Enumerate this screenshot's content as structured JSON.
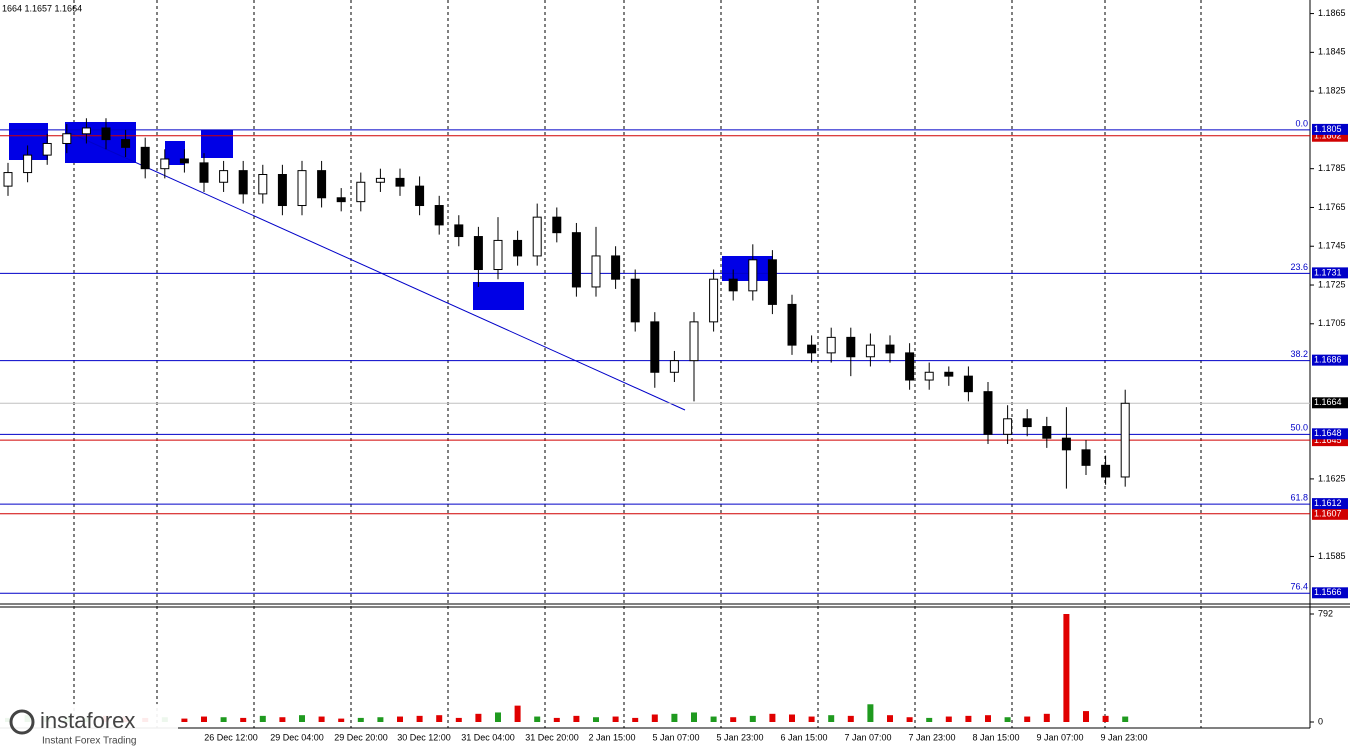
{
  "chart_data": {
    "type": "candlestick",
    "header": "1664 1.1657 1.1664",
    "ylim": [
      1.1561,
      1.1872
    ],
    "yticks": [
      1.1865,
      1.1845,
      1.1825,
      1.1785,
      1.1765,
      1.1745,
      1.1725,
      1.1705,
      1.1625,
      1.1585
    ],
    "x_labels": [
      "26 Dec 12:00",
      "29 Dec 04:00",
      "29 Dec 20:00",
      "30 Dec 12:00",
      "31 Dec 04:00",
      "31 Dec 20:00",
      "2 Jan 15:00",
      "5 Jan 07:00",
      "5 Jan 23:00",
      "6 Jan 15:00",
      "7 Jan 07:00",
      "7 Jan 23:00",
      "8 Jan 15:00",
      "9 Jan 07:00",
      "9 Jan 23:00"
    ],
    "open": [
      1.1776,
      1.1783,
      1.1792,
      1.1798,
      1.1803,
      1.1806,
      1.18,
      1.1796,
      1.1785,
      1.179,
      1.1788,
      1.1778,
      1.1784,
      1.1772,
      1.1782,
      1.1766,
      1.1784,
      1.177,
      1.1768,
      1.1778,
      1.178,
      1.1776,
      1.1766,
      1.1756,
      1.175,
      1.1733,
      1.1748,
      1.174,
      1.176,
      1.1752,
      1.1724,
      1.174,
      1.1728,
      1.1706,
      1.168,
      1.1686,
      1.1706,
      1.1728,
      1.1722,
      1.1738,
      1.1715,
      1.1694,
      1.169,
      1.1698,
      1.1688,
      1.1694,
      1.169,
      1.1676,
      1.168,
      1.1678,
      1.167,
      1.1648,
      1.1656,
      1.1652,
      1.1646,
      1.164,
      1.1632,
      1.1626
    ],
    "high": [
      1.1788,
      1.1797,
      1.1803,
      1.1808,
      1.1811,
      1.1811,
      1.1805,
      1.1801,
      1.1795,
      1.1795,
      1.1793,
      1.1789,
      1.1789,
      1.1787,
      1.1787,
      1.1789,
      1.1789,
      1.1775,
      1.1783,
      1.1785,
      1.1785,
      1.1781,
      1.1771,
      1.1761,
      1.1755,
      1.176,
      1.1753,
      1.1767,
      1.1765,
      1.1757,
      1.1755,
      1.1745,
      1.1733,
      1.1711,
      1.1691,
      1.1711,
      1.1733,
      1.1733,
      1.1746,
      1.1743,
      1.172,
      1.1699,
      1.1703,
      1.1703,
      1.17,
      1.1699,
      1.1695,
      1.1685,
      1.1683,
      1.1683,
      1.1675,
      1.1663,
      1.1661,
      1.1657,
      1.1662,
      1.1645,
      1.1637,
      1.1671
    ],
    "low": [
      1.1771,
      1.1778,
      1.1787,
      1.1793,
      1.1798,
      1.1795,
      1.1791,
      1.178,
      1.178,
      1.1783,
      1.1773,
      1.1773,
      1.1767,
      1.1767,
      1.1761,
      1.1761,
      1.1765,
      1.1763,
      1.1763,
      1.1773,
      1.1771,
      1.1761,
      1.1751,
      1.1745,
      1.1724,
      1.1728,
      1.1735,
      1.1735,
      1.1747,
      1.1719,
      1.1719,
      1.1723,
      1.1701,
      1.1672,
      1.1675,
      1.1665,
      1.1701,
      1.1717,
      1.1717,
      1.171,
      1.1689,
      1.1685,
      1.1685,
      1.1678,
      1.1683,
      1.1685,
      1.1671,
      1.1671,
      1.1673,
      1.1665,
      1.1643,
      1.1643,
      1.1647,
      1.1641,
      1.162,
      1.1627,
      1.1622,
      1.1621
    ],
    "close": [
      1.1783,
      1.1792,
      1.1798,
      1.1803,
      1.1806,
      1.18,
      1.1796,
      1.1785,
      1.179,
      1.1788,
      1.1778,
      1.1784,
      1.1772,
      1.1782,
      1.1766,
      1.1784,
      1.177,
      1.1768,
      1.1778,
      1.178,
      1.1776,
      1.1766,
      1.1756,
      1.175,
      1.1733,
      1.1748,
      1.174,
      1.176,
      1.1752,
      1.1724,
      1.174,
      1.1728,
      1.1706,
      1.168,
      1.1686,
      1.1706,
      1.1728,
      1.1722,
      1.1738,
      1.1715,
      1.1694,
      1.169,
      1.1698,
      1.1688,
      1.1694,
      1.169,
      1.1676,
      1.168,
      1.1678,
      1.167,
      1.1648,
      1.1656,
      1.1652,
      1.1646,
      1.164,
      1.1632,
      1.1626,
      1.1664
    ],
    "candle_color": "#000000",
    "fib_levels": [
      {
        "label": "0.0",
        "value": 1.1805
      },
      {
        "label": "23.6",
        "value": 1.1731
      },
      {
        "label": "38.2",
        "value": 1.1686
      },
      {
        "label": "50.0",
        "value": 1.1648
      },
      {
        "label": "61.8",
        "value": 1.1612
      },
      {
        "label": "76.4",
        "value": 1.1566
      }
    ],
    "fib_color": "#0000c8",
    "red_levels": [
      1.1802,
      1.1645,
      1.1607
    ],
    "red_color": "#d00000",
    "current_price": 1.1664,
    "volume": {
      "values": [
        30,
        50,
        40,
        35,
        30,
        45,
        40,
        30,
        35,
        25,
        40,
        35,
        30,
        45,
        35,
        50,
        40,
        25,
        30,
        35,
        40,
        45,
        50,
        30,
        60,
        70,
        120,
        40,
        30,
        45,
        35,
        40,
        30,
        55,
        60,
        70,
        40,
        35,
        45,
        60,
        55,
        40,
        50,
        45,
        130,
        50,
        35,
        30,
        40,
        45,
        50,
        35,
        40,
        60,
        792,
        80,
        45,
        40
      ],
      "ylim": [
        0,
        792
      ],
      "yticks": [
        792,
        0
      ],
      "up_color": "#1f9a1f",
      "down_color": "#e00000"
    },
    "logo": {
      "name": "instaforex",
      "tagline": "Instant Forex Trading"
    }
  }
}
